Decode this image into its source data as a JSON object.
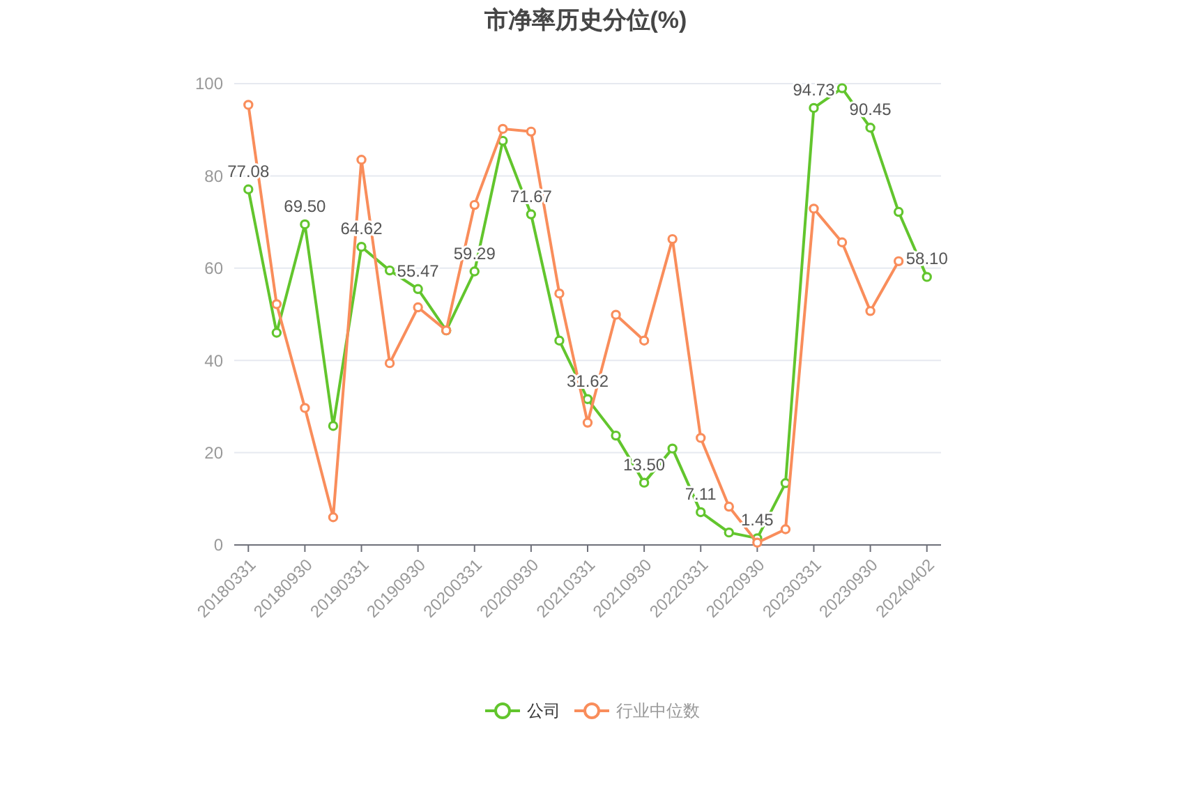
{
  "chart_data": {
    "type": "line",
    "title": "市净率历史分位(%)",
    "categories": [
      "20180331",
      null,
      "20180930",
      null,
      "20190331",
      null,
      "20190930",
      null,
      "20200331",
      null,
      "20200930",
      null,
      "20210331",
      null,
      "20210930",
      null,
      "20220331",
      null,
      "20220930",
      null,
      "20230331",
      null,
      "20230930",
      null,
      "20240402"
    ],
    "series": [
      {
        "name": "公司",
        "color": "#62c52d",
        "values": [
          77.08,
          46.0,
          69.5,
          25.8,
          64.62,
          59.5,
          55.47,
          46.5,
          59.29,
          87.6,
          71.67,
          44.3,
          31.62,
          23.7,
          13.5,
          20.9,
          7.11,
          2.7,
          1.45,
          13.4,
          94.73,
          99.0,
          90.45,
          72.2,
          58.1
        ],
        "value_labels": [
          "77.08",
          null,
          "69.50",
          null,
          "64.62",
          null,
          "55.47",
          null,
          "59.29",
          null,
          "71.67",
          null,
          "31.62",
          null,
          "13.50",
          null,
          "7.11",
          null,
          "1.45",
          null,
          "94.73",
          null,
          "90.45",
          null,
          "58.10"
        ]
      },
      {
        "name": "行业中位数",
        "color": "#f98d5b",
        "values": [
          95.4,
          52.2,
          29.7,
          6.0,
          83.5,
          39.4,
          51.5,
          46.5,
          73.7,
          90.2,
          89.6,
          54.5,
          26.5,
          49.9,
          44.3,
          66.3,
          23.2,
          8.3,
          0.5,
          3.4,
          72.9,
          65.6,
          50.7,
          61.5,
          null
        ]
      }
    ],
    "ylim": [
      0,
      100
    ],
    "yticks": [
      0,
      20,
      40,
      60,
      80,
      100
    ],
    "grid": "y",
    "legend": "bottom",
    "marker": "circle"
  }
}
